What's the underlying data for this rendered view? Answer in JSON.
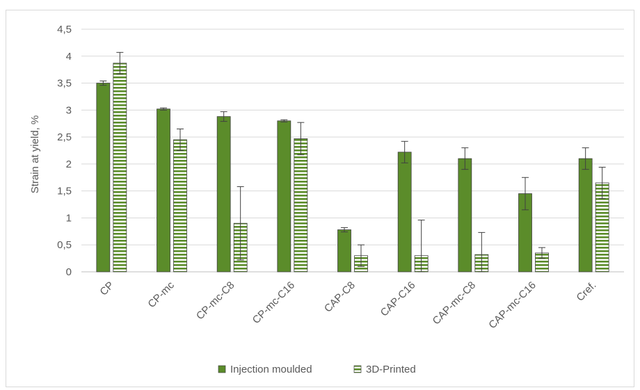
{
  "chart_data": {
    "type": "bar",
    "title": "",
    "xlabel": "",
    "ylabel": "Strain at yield, %",
    "ylim": [
      0,
      4.5
    ],
    "yticks": [
      "0",
      "0,5",
      "1",
      "1,5",
      "2",
      "2,5",
      "3",
      "3,5",
      "4",
      "4,5"
    ],
    "ytick_values": [
      0,
      0.5,
      1,
      1.5,
      2,
      2.5,
      3,
      3.5,
      4,
      4.5
    ],
    "grid": true,
    "legend_position": "bottom",
    "categories": [
      "CP",
      "CP-mc",
      "CP-mc-C8",
      "CP-mc-C16",
      "CAP-C8",
      "CAP-C16",
      "CAP-mc-C8",
      "CAP-mc-C16",
      "Cref."
    ],
    "series": [
      {
        "name": "Injection moulded",
        "color": "#5b8c2a",
        "pattern": "solid",
        "values": [
          3.5,
          3.02,
          2.88,
          2.8,
          0.78,
          2.22,
          2.1,
          1.45,
          2.1
        ],
        "errors": [
          0.04,
          0.02,
          0.09,
          0.02,
          0.04,
          0.2,
          0.2,
          0.3,
          0.2
        ]
      },
      {
        "name": "3D-Printed",
        "color": "#5b8c2a",
        "pattern": "horizontal-stripes",
        "values": [
          3.87,
          2.45,
          0.9,
          2.47,
          0.3,
          0.3,
          0.32,
          0.35,
          1.65
        ],
        "errors": [
          0.2,
          0.2,
          0.68,
          0.3,
          0.2,
          0.66,
          0.41,
          0.1,
          0.29
        ]
      }
    ]
  }
}
